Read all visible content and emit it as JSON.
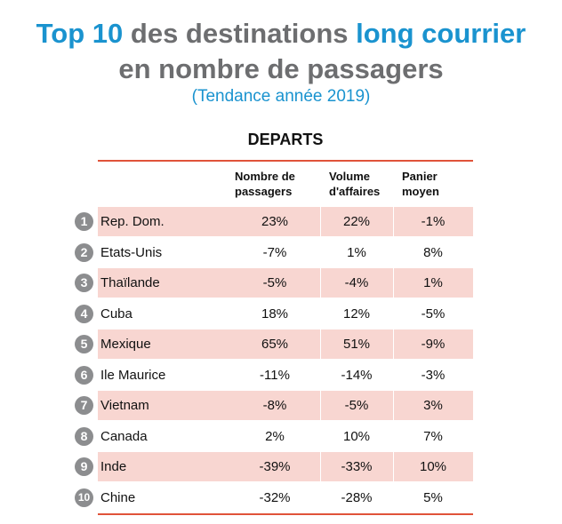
{
  "title": {
    "line1_highlight_a": "Top 10",
    "line1_middle": " des destinations ",
    "line1_highlight_b": "long courrier",
    "line2": "en nombre de passagers"
  },
  "subtitle": "(Tendance année 2019)",
  "colors": {
    "title_gray": "#6d6e70",
    "accent_blue": "#1a93cf",
    "rule_red": "#e0533a",
    "row_pink": "#f8d6d1",
    "badge_gray": "#8c8d8f"
  },
  "chart_data": {
    "type": "table",
    "section": "DEPARTS",
    "columns": [
      {
        "key": "pax",
        "label_line1": "Nombre de",
        "label_line2": "passagers"
      },
      {
        "key": "vol",
        "label_line1": "Volume",
        "label_line2": "d'affaires"
      },
      {
        "key": "pan",
        "label_line1": "Panier",
        "label_line2": "moyen"
      }
    ],
    "rows": [
      {
        "rank": "1",
        "destination": "Rep. Dom.",
        "pax": "23%",
        "vol": "22%",
        "pan": "-1%",
        "shaded": true
      },
      {
        "rank": "2",
        "destination": "Etats-Unis",
        "pax": "-7%",
        "vol": "1%",
        "pan": "8%",
        "shaded": false
      },
      {
        "rank": "3",
        "destination": "Thaïlande",
        "pax": "-5%",
        "vol": "-4%",
        "pan": "1%",
        "shaded": true
      },
      {
        "rank": "4",
        "destination": "Cuba",
        "pax": "18%",
        "vol": "12%",
        "pan": "-5%",
        "shaded": false
      },
      {
        "rank": "5",
        "destination": "Mexique",
        "pax": "65%",
        "vol": "51%",
        "pan": "-9%",
        "shaded": true
      },
      {
        "rank": "6",
        "destination": "Ile Maurice",
        "pax": "-11%",
        "vol": "-14%",
        "pan": "-3%",
        "shaded": false
      },
      {
        "rank": "7",
        "destination": "Vietnam",
        "pax": "-8%",
        "vol": "-5%",
        "pan": "3%",
        "shaded": true
      },
      {
        "rank": "8",
        "destination": "Canada",
        "pax": "2%",
        "vol": "10%",
        "pan": "7%",
        "shaded": false
      },
      {
        "rank": "9",
        "destination": "Inde",
        "pax": "-39%",
        "vol": "-33%",
        "pan": "10%",
        "shaded": true
      },
      {
        "rank": "10",
        "destination": "Chine",
        "pax": "-32%",
        "vol": "-28%",
        "pan": "5%",
        "shaded": false
      }
    ]
  }
}
